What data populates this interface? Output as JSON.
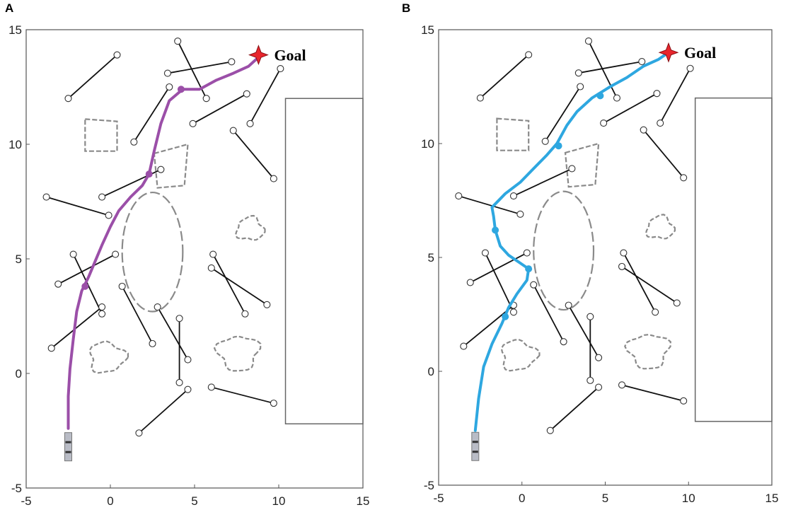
{
  "chart_data": [
    {
      "type": "scatter",
      "panel": "A",
      "title": "",
      "xlabel": "",
      "ylabel": "",
      "xlim": [
        -5,
        15
      ],
      "ylim": [
        -5,
        15
      ],
      "xticks": [
        "-5",
        "0",
        "5",
        "10",
        "15"
      ],
      "yticks": [
        "-5",
        "0",
        "5",
        "10",
        "15"
      ],
      "grid": false,
      "path_color": "#9b4fa8",
      "goal_label": "Goal",
      "goal": [
        8.8,
        13.9
      ],
      "start": [
        -2.5,
        -3.2
      ],
      "obstacle_segments": [
        [
          [
            -2.5,
            12
          ],
          [
            0.4,
            13.9
          ]
        ],
        [
          [
            1.4,
            10.1
          ],
          [
            3.5,
            12.5
          ]
        ],
        [
          [
            3.4,
            13.1
          ],
          [
            7.2,
            13.6
          ]
        ],
        [
          [
            4,
            14.5
          ],
          [
            5.7,
            12
          ]
        ],
        [
          [
            4.9,
            10.9
          ],
          [
            8.1,
            12.2
          ]
        ],
        [
          [
            8.3,
            10.9
          ],
          [
            10.1,
            13.3
          ]
        ],
        [
          [
            7.3,
            10.6
          ],
          [
            9.7,
            8.5
          ]
        ],
        [
          [
            -0.5,
            7.7
          ],
          [
            3,
            8.9
          ]
        ],
        [
          [
            -3.8,
            7.7
          ],
          [
            -0.1,
            6.9
          ]
        ],
        [
          [
            -3.1,
            3.9
          ],
          [
            0.3,
            5.2
          ]
        ],
        [
          [
            -2.2,
            5.2
          ],
          [
            -0.5,
            2.6
          ]
        ],
        [
          [
            -3.5,
            1.1
          ],
          [
            -0.5,
            2.9
          ]
        ],
        [
          [
            0.7,
            3.8
          ],
          [
            2.5,
            1.3
          ]
        ],
        [
          [
            2.8,
            2.9
          ],
          [
            4.6,
            0.6
          ]
        ],
        [
          [
            4.1,
            -0.4
          ],
          [
            4.1,
            2.4
          ]
        ],
        [
          [
            1.7,
            -2.6
          ],
          [
            4.6,
            -0.7
          ]
        ],
        [
          [
            6.1,
            5.2
          ],
          [
            8,
            2.6
          ]
        ],
        [
          [
            6,
            4.6
          ],
          [
            9.3,
            3
          ]
        ],
        [
          [
            6,
            -0.6
          ],
          [
            9.7,
            -1.3
          ]
        ]
      ],
      "path": [
        [
          -2.5,
          -2.4
        ],
        [
          -2.5,
          -1
        ],
        [
          -2.4,
          0.2
        ],
        [
          -2.2,
          1.5
        ],
        [
          -2,
          2.7
        ],
        [
          -1.7,
          3.6
        ],
        [
          -1.3,
          4.2
        ],
        [
          -0.9,
          4.9
        ],
        [
          -0.5,
          5.6
        ],
        [
          0,
          6.4
        ],
        [
          0.5,
          7.1
        ],
        [
          1.2,
          7.7
        ],
        [
          1.9,
          8.2
        ],
        [
          2.3,
          8.7
        ],
        [
          2.6,
          9.7
        ],
        [
          3,
          10.9
        ],
        [
          3.5,
          11.9
        ],
        [
          4.3,
          12.4
        ],
        [
          5.3,
          12.4
        ],
        [
          6.3,
          12.8
        ],
        [
          7.3,
          13.1
        ],
        [
          8.2,
          13.4
        ],
        [
          8.8,
          13.8
        ]
      ],
      "path_markers": [
        [
          2.3,
          8.7
        ],
        [
          4.2,
          12.4
        ],
        [
          -1.5,
          3.8
        ]
      ],
      "wall_rect": [
        10.4,
        12,
        15,
        -2.2
      ],
      "squares": [
        [
          [
            -1.5,
            11.1
          ],
          [
            0.4,
            11
          ],
          [
            0.4,
            9.7
          ],
          [
            -1.5,
            9.7
          ]
        ],
        [
          [
            2.6,
            9.6
          ],
          [
            4.6,
            10
          ],
          [
            4.4,
            8.2
          ],
          [
            2.8,
            8.1
          ]
        ]
      ],
      "ellipse": {
        "cx": 2.5,
        "cy": 5.3,
        "rx": 1.8,
        "ry": 2.6
      },
      "blobs": [
        {
          "cx": 8.3,
          "cy": 6.3,
          "r": 0.8
        },
        {
          "cx": -0.2,
          "cy": 0.7,
          "r": 1.05
        },
        {
          "cx": 7.6,
          "cy": 0.9,
          "r": 1.2
        }
      ]
    },
    {
      "type": "scatter",
      "panel": "B",
      "title": "",
      "xlabel": "",
      "ylabel": "",
      "xlim": [
        -5,
        15
      ],
      "ylim": [
        -5,
        15
      ],
      "xticks": [
        "-5",
        "0",
        "5",
        "10",
        "15"
      ],
      "yticks": [
        "-5",
        "0",
        "5",
        "10",
        "15"
      ],
      "grid": false,
      "path_color": "#2ea7e0",
      "goal_label": "Goal",
      "goal": [
        8.8,
        14
      ],
      "start": [
        -2.8,
        -3.3
      ],
      "obstacle_segments": [
        [
          [
            -2.5,
            12
          ],
          [
            0.4,
            13.9
          ]
        ],
        [
          [
            1.4,
            10.1
          ],
          [
            3.5,
            12.5
          ]
        ],
        [
          [
            3.4,
            13.1
          ],
          [
            7.2,
            13.6
          ]
        ],
        [
          [
            4,
            14.5
          ],
          [
            5.7,
            12
          ]
        ],
        [
          [
            4.9,
            10.9
          ],
          [
            8.1,
            12.2
          ]
        ],
        [
          [
            8.3,
            10.9
          ],
          [
            10.1,
            13.3
          ]
        ],
        [
          [
            7.3,
            10.6
          ],
          [
            9.7,
            8.5
          ]
        ],
        [
          [
            -0.5,
            7.7
          ],
          [
            3,
            8.9
          ]
        ],
        [
          [
            -3.8,
            7.7
          ],
          [
            -0.1,
            6.9
          ]
        ],
        [
          [
            -3.1,
            3.9
          ],
          [
            0.3,
            5.2
          ]
        ],
        [
          [
            -2.2,
            5.2
          ],
          [
            -0.5,
            2.6
          ]
        ],
        [
          [
            -3.5,
            1.1
          ],
          [
            -0.5,
            2.9
          ]
        ],
        [
          [
            0.7,
            3.8
          ],
          [
            2.5,
            1.3
          ]
        ],
        [
          [
            2.8,
            2.9
          ],
          [
            4.6,
            0.6
          ]
        ],
        [
          [
            4.1,
            -0.4
          ],
          [
            4.1,
            2.4
          ]
        ],
        [
          [
            1.7,
            -2.6
          ],
          [
            4.6,
            -0.7
          ]
        ],
        [
          [
            6.1,
            5.2
          ],
          [
            8,
            2.6
          ]
        ],
        [
          [
            6,
            4.6
          ],
          [
            9.3,
            3
          ]
        ],
        [
          [
            6,
            -0.6
          ],
          [
            9.7,
            -1.3
          ]
        ]
      ],
      "path": [
        [
          -2.8,
          -2.6
        ],
        [
          -2.6,
          -1.2
        ],
        [
          -2.3,
          0.2
        ],
        [
          -1.8,
          1.2
        ],
        [
          -1.2,
          2.1
        ],
        [
          -0.8,
          2.8
        ],
        [
          -0.3,
          3.4
        ],
        [
          0.3,
          4
        ],
        [
          0.4,
          4.5
        ],
        [
          -0.2,
          4.8
        ],
        [
          -0.8,
          5.1
        ],
        [
          -1.3,
          5.5
        ],
        [
          -1.6,
          6.2
        ],
        [
          -1.7,
          6.8
        ],
        [
          -1.8,
          7.2
        ],
        [
          -1,
          7.8
        ],
        [
          -0.1,
          8.3
        ],
        [
          0.7,
          8.9
        ],
        [
          1.5,
          9.5
        ],
        [
          2.1,
          10
        ],
        [
          2.7,
          10.8
        ],
        [
          3.3,
          11.4
        ],
        [
          4.2,
          12
        ],
        [
          5.3,
          12.5
        ],
        [
          6.3,
          12.9
        ],
        [
          7.3,
          13.4
        ],
        [
          8.2,
          13.7
        ],
        [
          8.8,
          14
        ]
      ],
      "path_markers": [
        [
          -1.6,
          6.2
        ],
        [
          2.2,
          9.9
        ],
        [
          0.4,
          4.5
        ],
        [
          -1,
          2.4
        ],
        [
          4.7,
          12.1
        ]
      ],
      "wall_rect": [
        10.4,
        12,
        15,
        -2.2
      ],
      "squares": [
        [
          [
            -1.5,
            11.1
          ],
          [
            0.4,
            11
          ],
          [
            0.4,
            9.7
          ],
          [
            -1.5,
            9.7
          ]
        ],
        [
          [
            2.6,
            9.6
          ],
          [
            4.6,
            10
          ],
          [
            4.4,
            8.2
          ],
          [
            2.8,
            8.1
          ]
        ]
      ],
      "ellipse": {
        "cx": 2.5,
        "cy": 5.3,
        "rx": 1.8,
        "ry": 2.6
      },
      "blobs": [
        {
          "cx": 8.3,
          "cy": 6.3,
          "r": 0.8
        },
        {
          "cx": -0.2,
          "cy": 0.7,
          "r": 1.05
        },
        {
          "cx": 7.6,
          "cy": 0.9,
          "r": 1.2
        }
      ]
    }
  ]
}
